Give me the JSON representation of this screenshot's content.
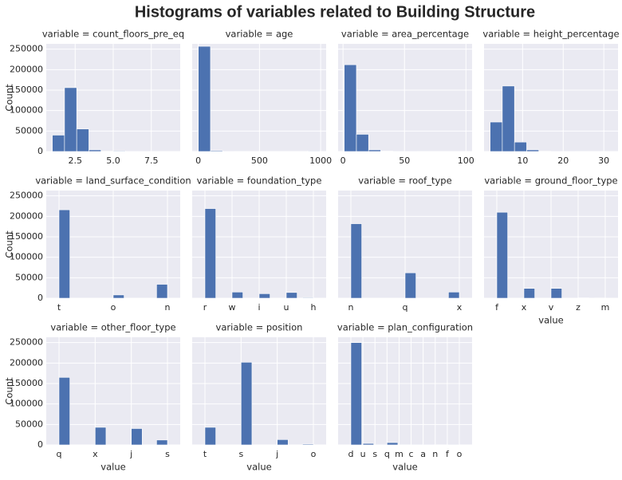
{
  "title": "Histograms of variables related to Building Structure",
  "bar_color": "#4c72b0",
  "chart_data": [
    {
      "type": "histogram",
      "title": "variable = count_floors_pre_eq",
      "y_label": "Count",
      "bins": [
        1,
        1.8,
        2.6,
        3.4,
        4.2,
        5,
        5.8,
        6.6,
        7.4,
        8.2,
        9
      ],
      "values": [
        40000,
        156000,
        55000,
        4000,
        500,
        1500,
        100,
        100,
        20,
        10
      ],
      "xlim": [
        0.6,
        9.4
      ],
      "xticks": [
        2.5,
        {
          "value": 5,
          "label": "5.0"
        },
        7.5
      ],
      "ylim": [
        0,
        263000
      ],
      "yticks": [
        0,
        50000,
        100000,
        150000,
        200000,
        250000
      ]
    },
    {
      "type": "histogram",
      "title": "variable = age",
      "bins": [
        0,
        99.5,
        199,
        298.5,
        398,
        497.5,
        597,
        696.5,
        796,
        895.5,
        995
      ],
      "values": [
        257000,
        2000,
        200,
        50,
        10,
        0,
        0,
        0,
        0,
        1400
      ],
      "xlim": [
        -50,
        1045
      ],
      "xticks": [
        0,
        500,
        1000
      ],
      "ylim": [
        0,
        263000
      ],
      "yticks": [
        0,
        50000,
        100000,
        150000,
        200000,
        250000
      ]
    },
    {
      "type": "histogram",
      "title": "variable = area_percentage",
      "bins": [
        1,
        10.9,
        20.8,
        30.7,
        40.6,
        50.5,
        60.4,
        70.3,
        80.2,
        90.1,
        100
      ],
      "values": [
        212000,
        42000,
        4000,
        1000,
        300,
        100,
        50,
        20,
        10,
        10
      ],
      "xlim": [
        -4,
        105
      ],
      "xticks": [
        0,
        50,
        100
      ],
      "ylim": [
        0,
        263000
      ],
      "yticks": [
        0,
        50000,
        100000,
        150000,
        200000,
        250000
      ]
    },
    {
      "type": "histogram",
      "title": "variable = height_percentage",
      "bins": [
        2,
        5,
        8,
        11,
        14,
        17,
        20,
        23,
        26,
        29,
        32
      ],
      "values": [
        72000,
        160000,
        23000,
        4000,
        500,
        200,
        100,
        50,
        10,
        10
      ],
      "xlim": [
        0.5,
        33.5
      ],
      "xticks": [
        10,
        20,
        30
      ],
      "ylim": [
        0,
        263000
      ],
      "yticks": [
        0,
        50000,
        100000,
        150000,
        200000,
        250000
      ]
    },
    {
      "type": "bar",
      "title": "variable = land_surface_condition",
      "y_label": "Count",
      "categories": [
        "t",
        "o",
        "n"
      ],
      "values": [
        216000,
        8000,
        34000
      ],
      "ylim": [
        0,
        263000
      ],
      "yticks": [
        0,
        50000,
        100000,
        150000,
        200000,
        250000
      ]
    },
    {
      "type": "bar",
      "title": "variable = foundation_type",
      "categories": [
        "r",
        "w",
        "i",
        "u",
        "h"
      ],
      "values": [
        219000,
        15000,
        11000,
        14000,
        1500
      ],
      "ylim": [
        0,
        263000
      ],
      "yticks": [
        0,
        50000,
        100000,
        150000,
        200000,
        250000
      ]
    },
    {
      "type": "bar",
      "title": "variable = roof_type",
      "categories": [
        "n",
        "q",
        "x"
      ],
      "values": [
        182000,
        62000,
        15000
      ],
      "ylim": [
        0,
        263000
      ],
      "yticks": [
        0,
        50000,
        100000,
        150000,
        200000,
        250000
      ]
    },
    {
      "type": "bar",
      "title": "variable = ground_floor_type",
      "x_label": "value",
      "categories": [
        "f",
        "x",
        "v",
        "z",
        "m"
      ],
      "values": [
        210000,
        24000,
        24000,
        1000,
        500
      ],
      "ylim": [
        0,
        263000
      ],
      "yticks": [
        0,
        50000,
        100000,
        150000,
        200000,
        250000
      ]
    },
    {
      "type": "bar",
      "title": "variable = other_floor_type",
      "y_label": "Count",
      "x_label": "value",
      "categories": [
        "q",
        "x",
        "j",
        "s"
      ],
      "values": [
        165000,
        43000,
        40000,
        12000
      ],
      "ylim": [
        0,
        263000
      ],
      "yticks": [
        0,
        50000,
        100000,
        150000,
        200000,
        250000
      ]
    },
    {
      "type": "bar",
      "title": "variable = position",
      "x_label": "value",
      "categories": [
        "t",
        "s",
        "j",
        "o"
      ],
      "values": [
        43000,
        202000,
        13000,
        2000
      ],
      "ylim": [
        0,
        263000
      ],
      "yticks": [
        0,
        50000,
        100000,
        150000,
        200000,
        250000
      ]
    },
    {
      "type": "bar",
      "title": "variable = plan_configuration",
      "x_label": "value",
      "categories": [
        "d",
        "u",
        "s",
        "q",
        "m",
        "c",
        "a",
        "n",
        "f",
        "o"
      ],
      "values": [
        250000,
        3600,
        300,
        5700,
        50,
        300,
        250,
        40,
        20,
        150
      ],
      "ylim": [
        0,
        263000
      ],
      "yticks": [
        0,
        50000,
        100000,
        150000,
        200000,
        250000
      ]
    }
  ]
}
